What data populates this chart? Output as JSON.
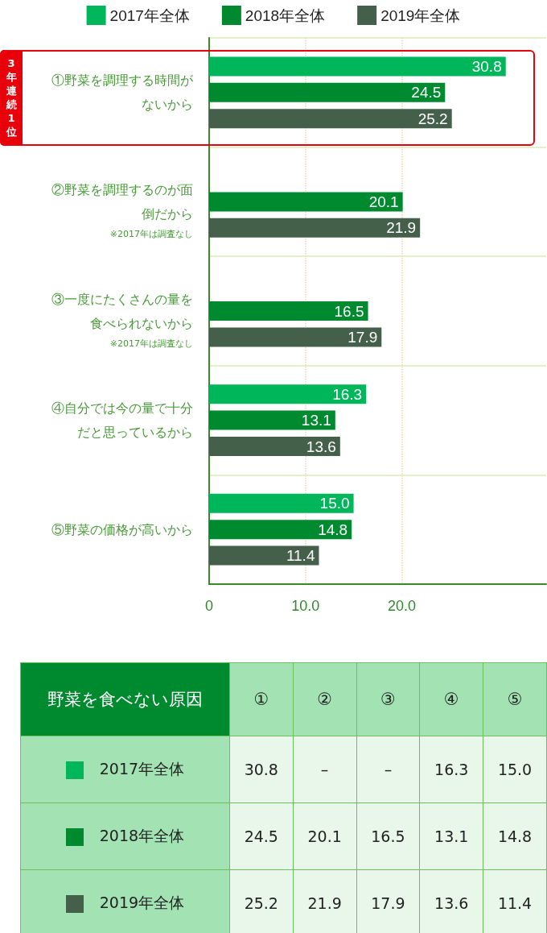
{
  "chart_data": {
    "type": "bar",
    "orientation": "horizontal",
    "categories": [
      "①野菜を調理する時間がないから",
      "②野菜を調理するのが面倒だから",
      "③一度にたくさんの量を食べられないから",
      "④自分では今の量で十分だと思っているから",
      "⑤野菜の価格が高いから"
    ],
    "series": [
      {
        "name": "2017年全体",
        "color": "#00b65a",
        "values": [
          30.8,
          null,
          null,
          16.3,
          15.0
        ],
        "value_labels": [
          "30.8",
          null,
          null,
          "16.3",
          "15.0"
        ]
      },
      {
        "name": "2018年全体",
        "color": "#008a30",
        "values": [
          24.5,
          20.1,
          16.5,
          13.1,
          14.8
        ],
        "value_labels": [
          "24.5",
          "20.1",
          "16.5",
          "13.1",
          "14.8"
        ]
      },
      {
        "name": "2019年全体",
        "color": "#445f4a",
        "values": [
          25.2,
          21.9,
          17.9,
          13.6,
          11.4
        ],
        "value_labels": [
          "25.2",
          "21.9",
          "17.9",
          "13.6",
          "11.4"
        ]
      }
    ],
    "xlim": [
      0,
      35
    ],
    "xticks": [
      0,
      {
        "value": 10,
        "label": "10.0"
      },
      {
        "value": 20,
        "label": "20.0"
      }
    ],
    "grid": true,
    "legend": "top",
    "annotations": [
      "3年連続1位",
      "※2017年は調査なし",
      "※2017年は調査なし",
      "野菜を食べない原因",
      "①",
      "②",
      "③",
      "④",
      "⑤",
      "–"
    ]
  }
}
